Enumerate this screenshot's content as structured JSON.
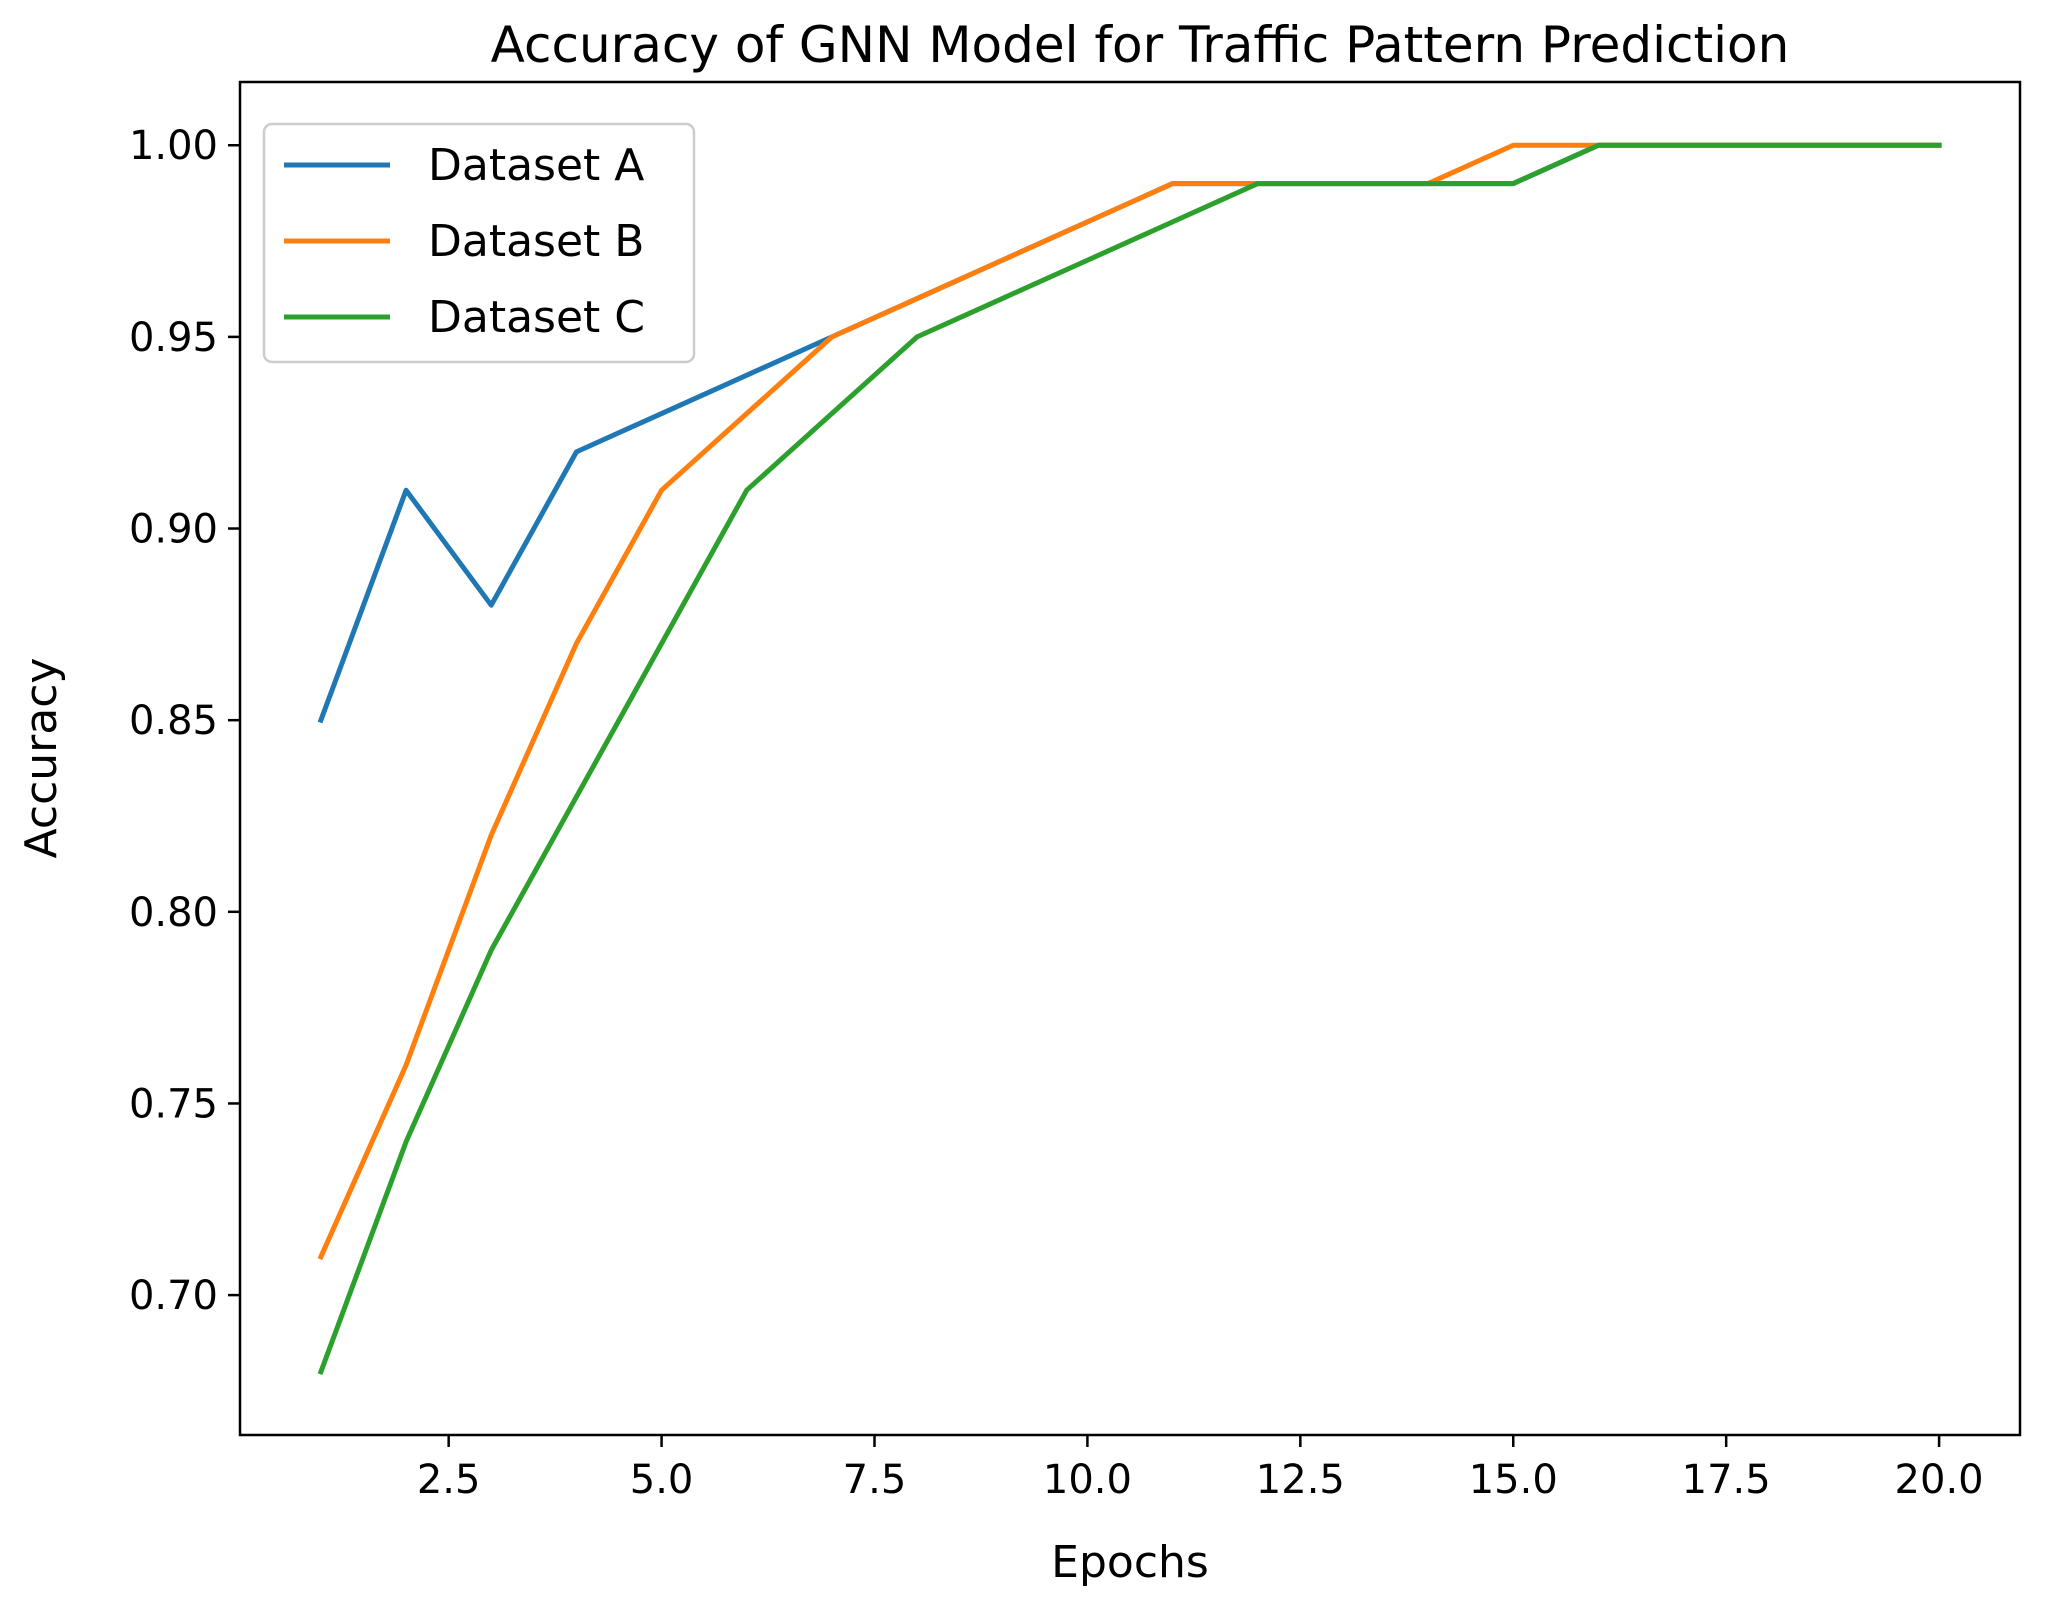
{
  "chart_data": {
    "type": "line",
    "title": "Accuracy of GNN Model for Traffic Pattern Prediction",
    "xlabel": "Epochs",
    "ylabel": "Accuracy",
    "xlim": [
      0.05,
      20.95
    ],
    "ylim": [
      0.6635,
      1.0165
    ],
    "xticks": [
      2.5,
      5.0,
      7.5,
      10.0,
      12.5,
      15.0,
      17.5,
      20.0
    ],
    "xtick_labels": [
      "2.5",
      "5.0",
      "7.5",
      "10.0",
      "12.5",
      "15.0",
      "17.5",
      "20.0"
    ],
    "yticks": [
      0.7,
      0.75,
      0.8,
      0.85,
      0.9,
      0.95,
      1.0
    ],
    "ytick_labels": [
      "0.70",
      "0.75",
      "0.80",
      "0.85",
      "0.90",
      "0.95",
      "1.00"
    ],
    "grid": false,
    "legend_position": "top-left",
    "x": [
      1,
      2,
      3,
      4,
      5,
      6,
      7,
      8,
      9,
      10,
      11,
      12,
      13,
      14,
      15,
      16,
      17,
      18,
      19,
      20
    ],
    "series": [
      {
        "name": "Dataset A",
        "color": "#1f77b4",
        "values": [
          0.85,
          0.91,
          0.88,
          0.92,
          0.93,
          0.94,
          0.95,
          0.96,
          0.97,
          0.98,
          0.99,
          0.99,
          0.99,
          0.99,
          0.99,
          1.0,
          1.0,
          1.0,
          1.0,
          1.0
        ]
      },
      {
        "name": "Dataset B",
        "color": "#ff7f0e",
        "values": [
          0.71,
          0.76,
          0.82,
          0.87,
          0.91,
          0.93,
          0.95,
          0.96,
          0.97,
          0.98,
          0.99,
          0.99,
          0.99,
          0.99,
          1.0,
          1.0,
          1.0,
          1.0,
          1.0,
          1.0
        ]
      },
      {
        "name": "Dataset C",
        "color": "#2ca02c",
        "values": [
          0.68,
          0.74,
          0.79,
          0.83,
          0.87,
          0.91,
          0.93,
          0.95,
          0.96,
          0.97,
          0.98,
          0.99,
          0.99,
          0.99,
          0.99,
          1.0,
          1.0,
          1.0,
          1.0,
          1.0
        ]
      }
    ]
  }
}
